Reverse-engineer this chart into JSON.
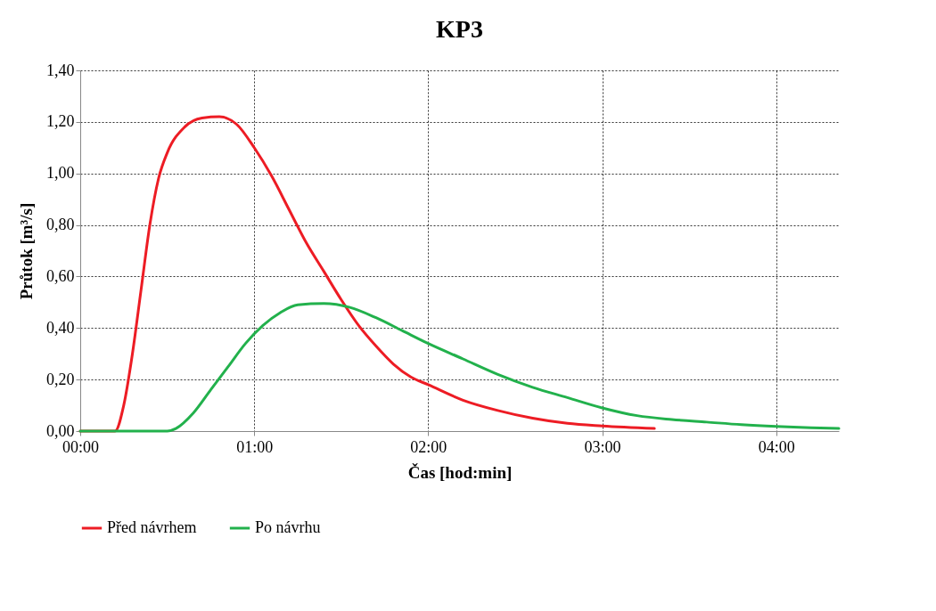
{
  "chart_data": {
    "type": "line",
    "title": "KP3",
    "xlabel": "Čas [hod:min]",
    "ylabel": "Průtok [m³/s]",
    "xlim": [
      0,
      4.36
    ],
    "xticks": [
      {
        "value": 0,
        "label": "00:00"
      },
      {
        "value": 1,
        "label": "01:00"
      },
      {
        "value": 2,
        "label": "02:00"
      },
      {
        "value": 3,
        "label": "03:00"
      },
      {
        "value": 4,
        "label": "04:00"
      }
    ],
    "ylim": [
      0,
      1.4
    ],
    "yticks": [
      {
        "value": 0,
        "label": "0,00"
      },
      {
        "value": 0.2,
        "label": "0,20"
      },
      {
        "value": 0.4,
        "label": "0,40"
      },
      {
        "value": 0.6,
        "label": "0,60"
      },
      {
        "value": 0.8,
        "label": "0,80"
      },
      {
        "value": 1,
        "label": "1,00"
      },
      {
        "value": 1.2,
        "label": "1,20"
      },
      {
        "value": 1.4,
        "label": "1,40"
      }
    ],
    "grid": true,
    "legend": "bottom",
    "line_style": "solid",
    "marker": "none",
    "series": [
      {
        "name": "Před návrhem",
        "color": "#ed1c24",
        "x": [
          0,
          0.2,
          0.25,
          0.3,
          0.35,
          0.4,
          0.45,
          0.5,
          0.6,
          0.7,
          0.8,
          0.9,
          1.0,
          1.1,
          1.2,
          1.3,
          1.4,
          1.5,
          1.6,
          1.7,
          1.8,
          1.9,
          2.0,
          2.2,
          2.4,
          2.6,
          2.8,
          3.0,
          3.3
        ],
        "values": [
          0,
          0,
          0.1,
          0.3,
          0.55,
          0.8,
          0.98,
          1.08,
          1.18,
          1.215,
          1.22,
          1.19,
          1.1,
          0.99,
          0.86,
          0.73,
          0.62,
          0.51,
          0.41,
          0.33,
          0.26,
          0.21,
          0.18,
          0.12,
          0.08,
          0.05,
          0.03,
          0.02,
          0.01
        ]
      },
      {
        "name": "Po návrhu",
        "color": "#22b14c",
        "x": [
          0,
          0.5,
          0.55,
          0.65,
          0.75,
          0.85,
          0.95,
          1.05,
          1.15,
          1.25,
          1.4,
          1.55,
          1.7,
          1.85,
          2.0,
          2.2,
          2.4,
          2.6,
          2.8,
          3.0,
          3.2,
          3.4,
          3.6,
          3.8,
          4.0,
          4.2,
          4.36
        ],
        "values": [
          0,
          0,
          0.01,
          0.07,
          0.16,
          0.25,
          0.34,
          0.41,
          0.46,
          0.49,
          0.495,
          0.48,
          0.44,
          0.39,
          0.34,
          0.28,
          0.22,
          0.17,
          0.13,
          0.09,
          0.06,
          0.045,
          0.035,
          0.025,
          0.018,
          0.013,
          0.01
        ]
      }
    ]
  }
}
